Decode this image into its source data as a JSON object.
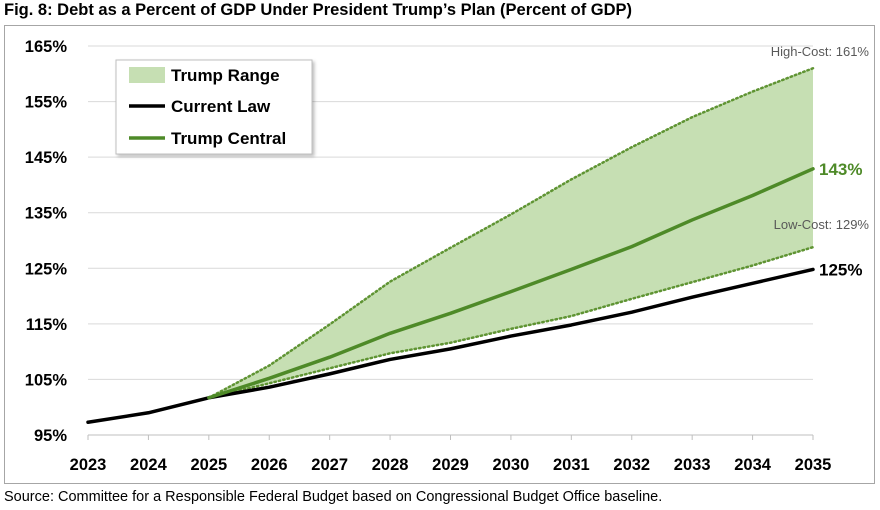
{
  "title": "Fig. 8: Debt as a Percent of GDP Under President Trump’s Plan (Percent of GDP)",
  "source": "Source: Committee for a Responsible Federal Budget based on Congressional Budget Office baseline.",
  "colors": {
    "range_fill": "#c6dfb3",
    "range_edge": "#5f9433",
    "central": "#4e8a28",
    "current_law": "#000000",
    "grid": "#d9d9d9"
  },
  "chart_data": {
    "type": "line",
    "title": "Fig. 8: Debt as a Percent of GDP Under President Trump’s Plan (Percent of GDP)",
    "xlabel": "",
    "ylabel": "",
    "x": [
      2023,
      2024,
      2025,
      2026,
      2027,
      2028,
      2029,
      2030,
      2031,
      2032,
      2033,
      2034,
      2035
    ],
    "ylim": [
      95,
      165
    ],
    "yticks": [
      95,
      105,
      115,
      125,
      135,
      145,
      155,
      165
    ],
    "ytick_labels": [
      "95%",
      "105%",
      "115%",
      "125%",
      "135%",
      "145%",
      "155%",
      "165%"
    ],
    "xtick_labels": [
      "2023",
      "2024",
      "2025",
      "2026",
      "2027",
      "2028",
      "2029",
      "2030",
      "2031",
      "2032",
      "2033",
      "2034",
      "2035"
    ],
    "grid": "horizontal",
    "legend_position": "top-left",
    "series": [
      {
        "name": "Current Law",
        "x": [
          2023,
          2024,
          2025,
          2026,
          2027,
          2028,
          2029,
          2030,
          2031,
          2032,
          2033,
          2034,
          2035
        ],
        "values": [
          97.3,
          99.0,
          101.7,
          103.6,
          106.0,
          108.6,
          110.5,
          112.8,
          114.8,
          117.1,
          119.8,
          122.3,
          124.8
        ]
      },
      {
        "name": "Trump Central",
        "x": [
          2025,
          2026,
          2027,
          2028,
          2029,
          2030,
          2031,
          2032,
          2033,
          2034,
          2035
        ],
        "values": [
          101.7,
          105.2,
          109.0,
          113.3,
          116.9,
          120.8,
          124.8,
          128.9,
          133.7,
          138.1,
          142.9
        ]
      }
    ],
    "range": {
      "name": "Trump Range",
      "x": [
        2025,
        2026,
        2027,
        2028,
        2029,
        2030,
        2031,
        2032,
        2033,
        2034,
        2035
      ],
      "low": [
        101.7,
        104.3,
        107.0,
        109.7,
        111.6,
        114.1,
        116.4,
        119.5,
        122.5,
        125.5,
        128.8
      ],
      "high": [
        101.7,
        107.5,
        114.9,
        122.6,
        128.7,
        134.7,
        141.0,
        146.8,
        152.2,
        156.8,
        161.0
      ]
    },
    "annotations": {
      "high_cost": "High-Cost: 161%",
      "low_cost": "Low-Cost: 129%",
      "central_end": "143%",
      "current_end": "125%"
    },
    "legend": [
      "Trump Range",
      "Current Law",
      "Trump Central"
    ]
  }
}
